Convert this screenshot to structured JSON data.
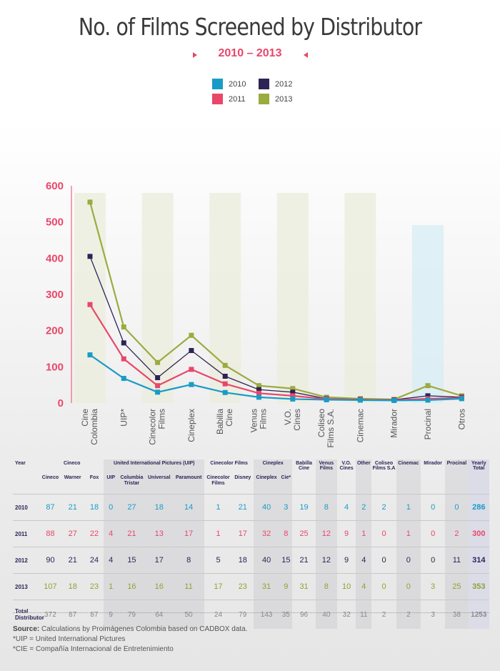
{
  "title": "No. of Films Screened by Distributor",
  "subtitle": "2010 – 2013",
  "colors": {
    "2010": "#1a9bc7",
    "2011": "#e8476a",
    "2012": "#2e2355",
    "2013": "#9bab3f"
  },
  "legend": [
    "2010",
    "2011",
    "2012",
    "2013"
  ],
  "chart_data": {
    "type": "line",
    "categories": [
      "Cine Colombia",
      "UIP*",
      "Cinecolor Films",
      "Cineplex",
      "Babilla Cine",
      "Venus Films",
      "V.O. Cines",
      "Coliseo Films S.A.",
      "Cinemac",
      "Mirador",
      "Procinal",
      "Otros"
    ],
    "series": [
      {
        "name": "2010",
        "values": [
          133,
          68,
          30,
          51,
          29,
          16,
          11,
          9,
          8,
          7,
          8,
          12
        ]
      },
      {
        "name": "2011",
        "values": [
          272,
          122,
          48,
          93,
          53,
          27,
          20,
          11,
          9,
          8,
          12,
          14
        ]
      },
      {
        "name": "2012",
        "values": [
          405,
          166,
          70,
          145,
          74,
          37,
          30,
          12,
          10,
          9,
          20,
          16
        ]
      },
      {
        "name": "2013",
        "values": [
          555,
          210,
          112,
          187,
          104,
          48,
          40,
          16,
          12,
          10,
          48,
          20
        ]
      }
    ],
    "yticks": [
      0,
      100,
      200,
      300,
      400,
      500,
      600
    ],
    "ylim": [
      0,
      600
    ],
    "xlabel": "",
    "ylabel": ""
  },
  "table": {
    "groups": [
      "Year",
      "Cineco",
      "United International Pictures (UIP)",
      "Cinecolor Films",
      "Cineplex",
      "Babilla Cine",
      "Venus Films",
      "V.O. Cines",
      "Other",
      "Coliseo Films S.A",
      "Cinemac",
      "Mirador",
      "Procinal",
      "Yearly Total"
    ],
    "subheaders": [
      "Cineco",
      "Warner",
      "Fox",
      "UIP",
      "Columbia Tristar",
      "Universal",
      "Paramount",
      "Cinecolor Films",
      "Disney",
      "Cineplex",
      "Cie*"
    ],
    "rows": [
      {
        "year": "2010",
        "cls": "r2010",
        "values": [
          "87",
          "21",
          "18",
          "0",
          "27",
          "18",
          "14",
          "1",
          "21",
          "40",
          "3",
          "19",
          "8",
          "4",
          "2",
          "2",
          "1",
          "0",
          "0",
          "286"
        ]
      },
      {
        "year": "2011",
        "cls": "r2011",
        "values": [
          "88",
          "27",
          "22",
          "4",
          "21",
          "13",
          "17",
          "1",
          "17",
          "32",
          "8",
          "25",
          "12",
          "9",
          "1",
          "0",
          "1",
          "0",
          "2",
          "300"
        ]
      },
      {
        "year": "2012",
        "cls": "r2012",
        "values": [
          "90",
          "21",
          "24",
          "4",
          "15",
          "17",
          "8",
          "5",
          "18",
          "40",
          "15",
          "21",
          "12",
          "9",
          "4",
          "0",
          "0",
          "0",
          "11",
          "314"
        ]
      },
      {
        "year": "2013",
        "cls": "r2013",
        "values": [
          "107",
          "18",
          "23",
          "1",
          "16",
          "16",
          "11",
          "17",
          "23",
          "31",
          "9",
          "31",
          "8",
          "10",
          "4",
          "0",
          "0",
          "3",
          "25",
          "353"
        ]
      }
    ],
    "total_label": "Total Distributor",
    "totals": [
      "372",
      "87",
      "87",
      "9",
      "79",
      "64",
      "50",
      "24",
      "79",
      "143",
      "35",
      "96",
      "40",
      "32",
      "11",
      "2",
      "2",
      "3",
      "38",
      "1253"
    ]
  },
  "notes": {
    "source_label": "Source:",
    "source_text": " Calculations by Proimágenes Colombia based on CADBOX data.",
    "note_uip": "*UIP = United International Pictures",
    "note_cie": "*CIE = Compañía Internacional de Entretenimiento"
  }
}
